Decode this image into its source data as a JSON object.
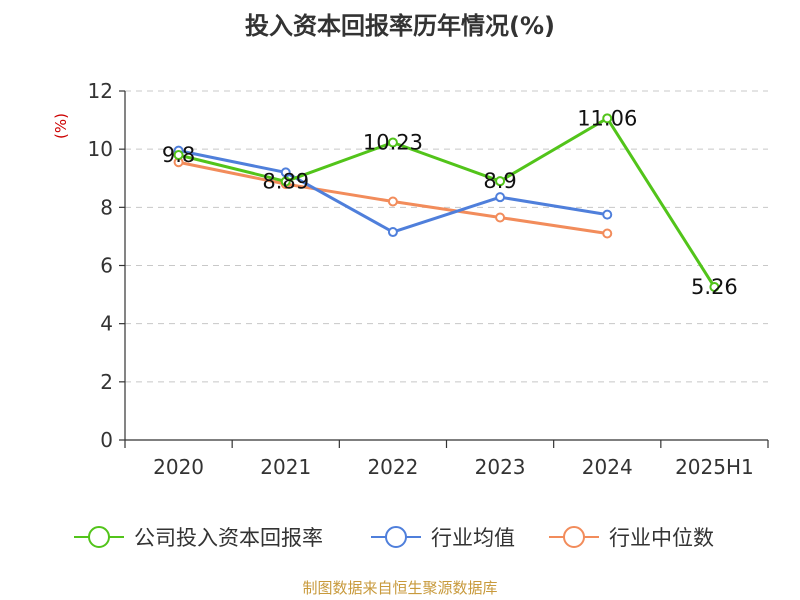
{
  "chart_data": {
    "type": "line",
    "title": "投入资本回报率历年情况(%)",
    "ylabel": "(%)",
    "xlabel": "",
    "categories": [
      "2020",
      "2021",
      "2022",
      "2023",
      "2024",
      "2025H1"
    ],
    "ylim": [
      0,
      12
    ],
    "yticks": [
      0,
      2,
      4,
      6,
      8,
      10,
      12
    ],
    "grid": true,
    "legend_position": "bottom",
    "series": [
      {
        "name": "公司投入资本回报率",
        "color": "#52c41a",
        "values": [
          9.8,
          8.89,
          10.23,
          8.9,
          11.06,
          5.26
        ],
        "labels": [
          "9.8",
          "8.89",
          "10.23",
          "8.9",
          "11.06",
          "5.26"
        ]
      },
      {
        "name": "行业均值",
        "color": "#4f7fdb",
        "values": [
          9.95,
          9.2,
          7.15,
          8.35,
          7.75,
          null
        ]
      },
      {
        "name": "行业中位数",
        "color": "#f28c5b",
        "values": [
          9.55,
          8.8,
          8.2,
          7.65,
          7.1,
          null
        ]
      }
    ],
    "source": "制图数据来自恒生聚源数据库"
  }
}
